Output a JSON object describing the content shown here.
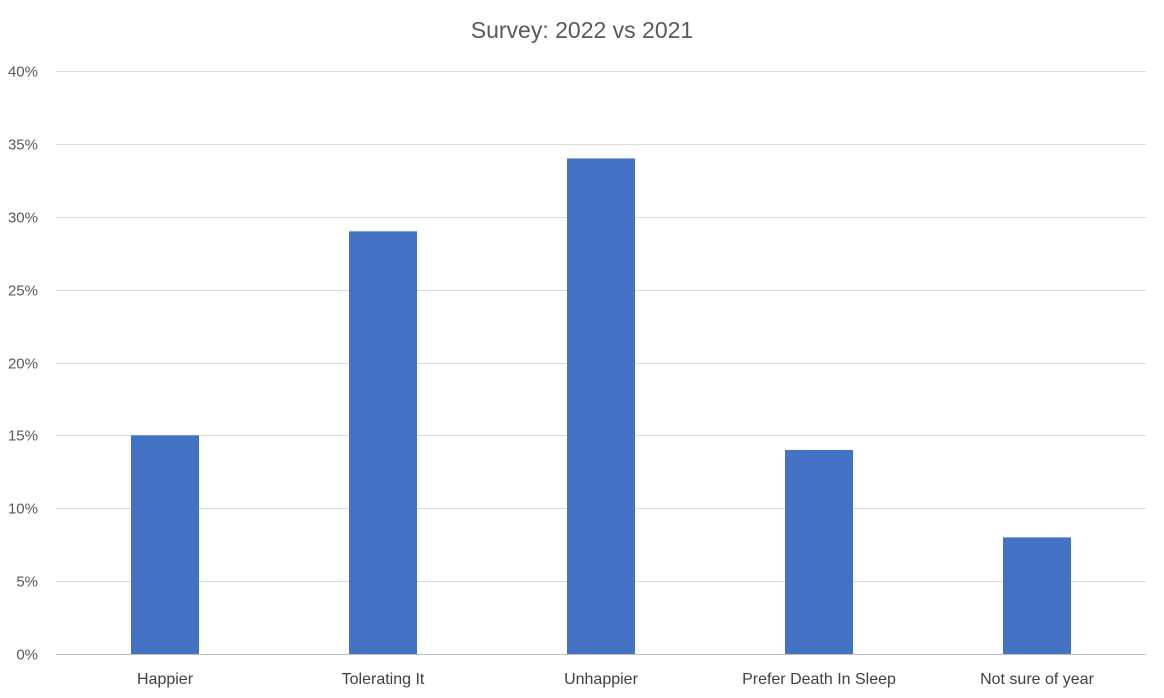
{
  "chart_data": {
    "type": "bar",
    "title": "Survey: 2022 vs 2021",
    "categories": [
      "Happier",
      "Tolerating It",
      "Unhappier",
      "Prefer Death In Sleep",
      "Not sure of year"
    ],
    "series": [
      {
        "values": [
          0.15,
          0.29,
          0.34,
          0.14,
          0.08
        ]
      }
    ],
    "ylim": [
      0,
      0.4
    ],
    "yticks": [
      0,
      0.05,
      0.1,
      0.15,
      0.2,
      0.25,
      0.3,
      0.35,
      0.4
    ],
    "ytick_labels": [
      "0%",
      "5%",
      "10%",
      "15%",
      "20%",
      "25%",
      "30%",
      "35%",
      "40%"
    ],
    "xlabel": "",
    "ylabel": "",
    "grid": true,
    "legend": "none",
    "colors": {
      "bar": "#4472C4",
      "grid": "#D9D9D9",
      "axis": "#BFBFBF",
      "title": "#595959",
      "tick": "#595959"
    }
  }
}
